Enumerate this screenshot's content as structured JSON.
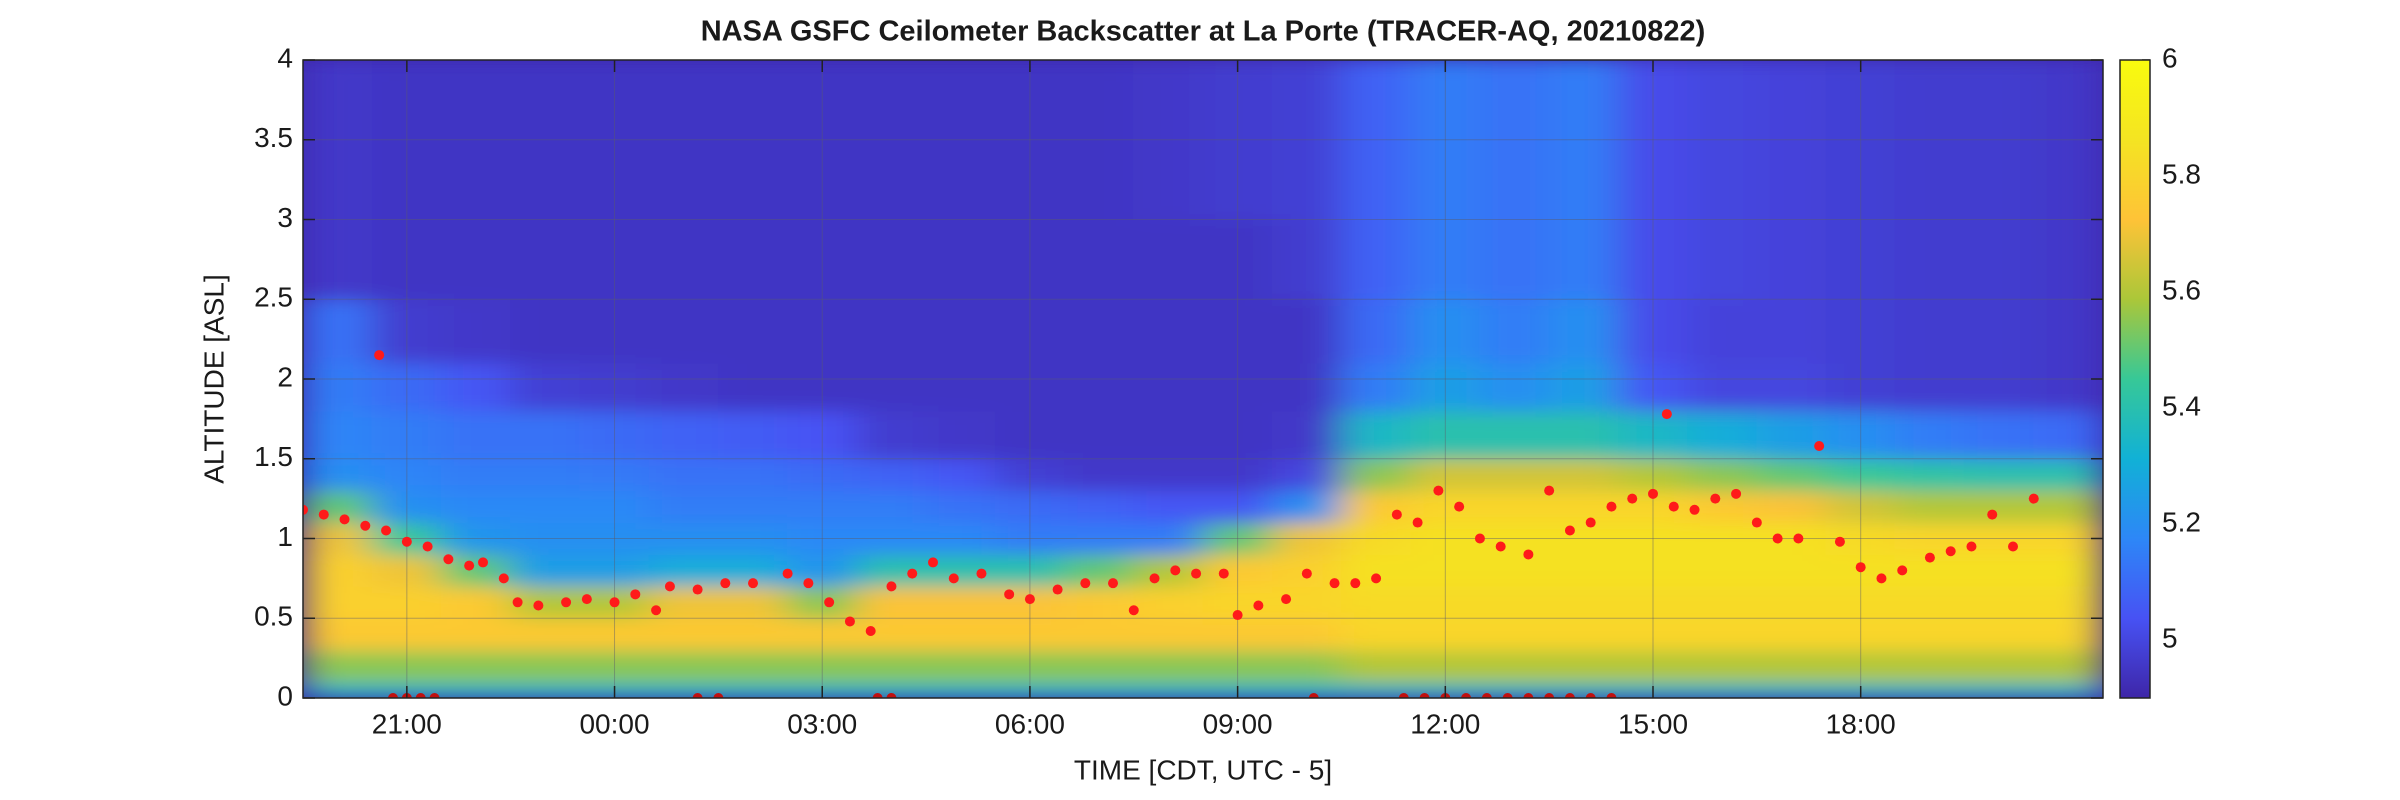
{
  "chart_data": {
    "type": "heatmap",
    "title": "NASA GSFC Ceilometer Backscatter at La Porte (TRACER-AQ, 20210822)",
    "xlabel": "TIME [CDT, UTC - 5]",
    "ylabel": "ALTITUDE [ASL]",
    "xlim": [
      19.5,
      45.5
    ],
    "ylim": [
      0,
      4
    ],
    "xticks": [
      {
        "value": 21,
        "label": "21:00"
      },
      {
        "value": 24,
        "label": "00:00"
      },
      {
        "value": 27,
        "label": "03:00"
      },
      {
        "value": 30,
        "label": "06:00"
      },
      {
        "value": 33,
        "label": "09:00"
      },
      {
        "value": 36,
        "label": "12:00"
      },
      {
        "value": 39,
        "label": "15:00"
      },
      {
        "value": 42,
        "label": "18:00"
      }
    ],
    "yticks": [
      0,
      0.5,
      1,
      1.5,
      2,
      2.5,
      3,
      3.5,
      4
    ],
    "grid": true,
    "colormap": [
      "#3e26a8",
      "#4752f4",
      "#2d87f7",
      "#11b1d6",
      "#37c897",
      "#abc739",
      "#fec337",
      "#f4e422",
      "#f9fb0e"
    ],
    "colorbar": {
      "clim": [
        4.9,
        6
      ],
      "ticks": [
        5,
        5.2,
        5.4,
        5.6,
        5.8,
        6
      ]
    },
    "x_edges": [
      19.5,
      20.5,
      21.5,
      22.5,
      23.5,
      24.5,
      25.5,
      26.5,
      27.5,
      28.5,
      29.5,
      30.5,
      31.5,
      32.5,
      33.5,
      34.5,
      35.5,
      36.5,
      37.5,
      38.5,
      39.5,
      40.5,
      41.5,
      42.5,
      43.5,
      44.5,
      45.5
    ],
    "y_edges": [
      0,
      0.1,
      0.3,
      0.5,
      0.7,
      0.9,
      1.1,
      1.3,
      1.5,
      1.8,
      2.1,
      2.5,
      3,
      4
    ],
    "z": [
      [
        5.35,
        5.35,
        5.35,
        5.35,
        5.35,
        5.35,
        5.35,
        5.35,
        5.35,
        5.35,
        5.35,
        5.35,
        5.35,
        5.35,
        5.35,
        5.35,
        5.35,
        5.35,
        5.35,
        5.35,
        5.35,
        5.35,
        5.35,
        5.35,
        5.35,
        5.35
      ],
      [
        5.55,
        5.55,
        5.55,
        5.55,
        5.55,
        5.55,
        5.55,
        5.55,
        5.55,
        5.55,
        5.55,
        5.55,
        5.55,
        5.55,
        5.55,
        5.6,
        5.6,
        5.6,
        5.6,
        5.6,
        5.6,
        5.6,
        5.6,
        5.6,
        5.6,
        5.6
      ],
      [
        5.75,
        5.75,
        5.75,
        5.75,
        5.75,
        5.75,
        5.75,
        5.75,
        5.75,
        5.75,
        5.75,
        5.75,
        5.75,
        5.75,
        5.75,
        5.8,
        5.8,
        5.8,
        5.8,
        5.8,
        5.8,
        5.8,
        5.8,
        5.8,
        5.8,
        5.8
      ],
      [
        5.78,
        5.78,
        5.75,
        5.6,
        5.6,
        5.7,
        5.7,
        5.55,
        5.72,
        5.72,
        5.72,
        5.75,
        5.78,
        5.8,
        5.8,
        5.82,
        5.82,
        5.82,
        5.82,
        5.82,
        5.82,
        5.82,
        5.82,
        5.82,
        5.82,
        5.82
      ],
      [
        5.78,
        5.7,
        5.5,
        5.25,
        5.25,
        5.3,
        5.3,
        5.22,
        5.4,
        5.4,
        5.4,
        5.5,
        5.6,
        5.75,
        5.78,
        5.85,
        5.85,
        5.85,
        5.85,
        5.85,
        5.85,
        5.85,
        5.85,
        5.85,
        5.85,
        5.85
      ],
      [
        5.7,
        5.45,
        5.22,
        5.2,
        5.2,
        5.2,
        5.2,
        5.18,
        5.18,
        5.18,
        5.15,
        5.15,
        5.15,
        5.5,
        5.7,
        5.82,
        5.85,
        5.85,
        5.85,
        5.85,
        5.85,
        5.85,
        5.82,
        5.8,
        5.8,
        5.8
      ],
      [
        5.5,
        5.2,
        5.18,
        5.18,
        5.18,
        5.15,
        5.15,
        5.15,
        5.15,
        5.12,
        5.1,
        5.08,
        5.05,
        5.05,
        5.2,
        5.75,
        5.8,
        5.8,
        5.8,
        5.8,
        5.75,
        5.72,
        5.65,
        5.6,
        5.6,
        5.6
      ],
      [
        5.2,
        5.17,
        5.15,
        5.15,
        5.14,
        5.12,
        5.12,
        5.1,
        5.08,
        5.05,
        4.98,
        4.96,
        4.96,
        4.96,
        5.0,
        5.55,
        5.65,
        5.65,
        5.65,
        5.6,
        5.55,
        5.5,
        5.45,
        5.42,
        5.4,
        5.4
      ],
      [
        5.17,
        5.15,
        5.12,
        5.12,
        5.1,
        5.08,
        5.06,
        5.04,
        4.97,
        4.96,
        4.95,
        4.95,
        4.95,
        4.95,
        4.96,
        5.35,
        5.4,
        5.4,
        5.4,
        5.35,
        5.3,
        5.25,
        5.2,
        5.15,
        5.12,
        5.1
      ],
      [
        5.15,
        5.1,
        5.05,
        4.98,
        4.97,
        4.96,
        4.95,
        4.95,
        4.95,
        4.95,
        4.95,
        4.95,
        4.95,
        4.95,
        4.95,
        5.15,
        5.25,
        5.2,
        5.25,
        5.05,
        5.0,
        5.0,
        4.98,
        4.97,
        4.97,
        4.96
      ],
      [
        5.12,
        4.97,
        4.96,
        4.95,
        4.95,
        4.95,
        4.95,
        4.95,
        4.95,
        4.95,
        4.95,
        4.95,
        4.95,
        4.95,
        4.95,
        5.1,
        5.2,
        5.15,
        5.2,
        5.02,
        4.99,
        4.99,
        4.98,
        4.97,
        4.97,
        4.96
      ],
      [
        4.96,
        4.95,
        4.95,
        4.95,
        4.95,
        4.95,
        4.95,
        4.95,
        4.95,
        4.95,
        4.95,
        4.95,
        4.95,
        4.95,
        4.97,
        5.08,
        5.15,
        5.12,
        5.15,
        5.02,
        5.0,
        4.99,
        4.98,
        4.97,
        4.97,
        4.96
      ],
      [
        4.96,
        4.95,
        4.95,
        4.95,
        4.95,
        4.95,
        4.95,
        4.95,
        4.95,
        4.95,
        4.95,
        4.95,
        4.96,
        4.97,
        4.98,
        5.08,
        5.15,
        5.12,
        5.15,
        5.02,
        5.0,
        4.99,
        4.98,
        4.97,
        4.97,
        4.96
      ]
    ],
    "series": [
      {
        "color": "#ff1a1a",
        "x": [
          19.5,
          19.8,
          20.1,
          20.4,
          20.6,
          20.7,
          21.0,
          21.3,
          21.6,
          21.9,
          22.1,
          22.4,
          22.6,
          22.9,
          23.3,
          23.6,
          24.0,
          24.3,
          24.6,
          24.8,
          25.2,
          25.6,
          26.0,
          26.5,
          26.8,
          27.1,
          27.4,
          27.7,
          28.0,
          28.3,
          28.6,
          28.9,
          29.3,
          29.7,
          30.0,
          30.4,
          30.8,
          31.2,
          31.5,
          31.8,
          32.1,
          32.4,
          32.8,
          33.0,
          33.3,
          33.7,
          34.0,
          34.4,
          34.7,
          35.0,
          35.3,
          35.6,
          35.9,
          36.2,
          36.5,
          36.8,
          37.2,
          37.5,
          37.8,
          38.1,
          38.4,
          38.7,
          39.0,
          39.2,
          39.3,
          39.6,
          39.9,
          40.2,
          40.5,
          40.8,
          41.1,
          41.4,
          41.7,
          42.0,
          42.3,
          42.6,
          43.0,
          43.3,
          43.6,
          43.9,
          44.2,
          44.5
        ],
        "values": [
          1.18,
          1.15,
          1.12,
          1.08,
          2.15,
          1.05,
          0.98,
          0.95,
          0.87,
          0.83,
          0.85,
          0.75,
          0.6,
          0.58,
          0.6,
          0.62,
          0.6,
          0.65,
          0.55,
          0.7,
          0.68,
          0.72,
          0.72,
          0.78,
          0.72,
          0.6,
          0.48,
          0.42,
          0.7,
          0.78,
          0.85,
          0.75,
          0.78,
          0.65,
          0.62,
          0.68,
          0.72,
          0.72,
          0.55,
          0.75,
          0.8,
          0.78,
          0.78,
          0.52,
          0.58,
          0.62,
          0.78,
          0.72,
          0.72,
          0.75,
          1.15,
          1.1,
          1.3,
          1.2,
          1.0,
          0.95,
          0.9,
          1.3,
          1.05,
          1.1,
          1.2,
          1.25,
          1.28,
          1.78,
          1.2,
          1.18,
          1.25,
          1.28,
          1.1,
          1.0,
          1.0,
          1.58,
          0.98,
          0.82,
          0.75,
          0.8,
          0.88,
          0.92,
          0.95,
          1.15,
          0.95,
          1.25
        ]
      },
      {
        "color": "#c01010",
        "x": [
          20.8,
          21.0,
          21.2,
          21.4,
          25.2,
          25.5,
          27.8,
          28.0,
          34.1,
          35.4,
          35.7,
          36.0,
          36.3,
          36.6,
          36.9,
          37.2,
          37.5,
          37.8,
          38.1,
          38.4
        ],
        "values": [
          0,
          0,
          0,
          0,
          0,
          0,
          0,
          0,
          0,
          0,
          0,
          0,
          0,
          0,
          0,
          0,
          0,
          0,
          0,
          0
        ]
      }
    ]
  }
}
